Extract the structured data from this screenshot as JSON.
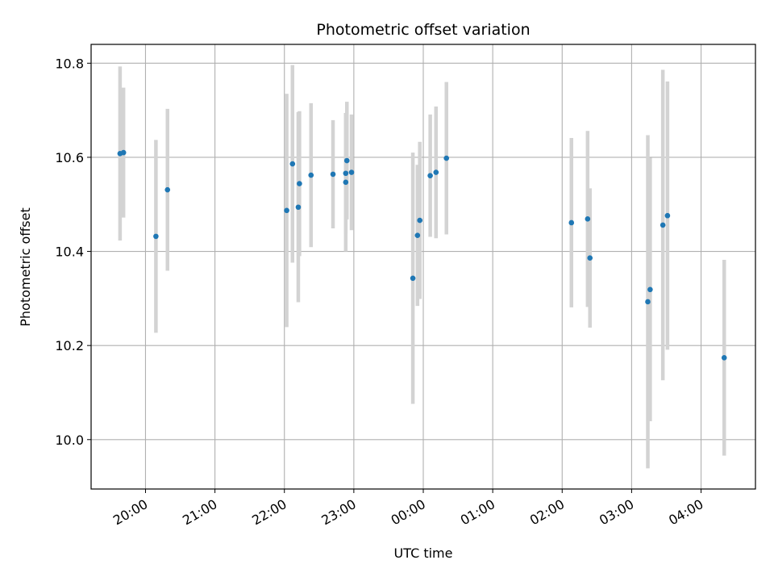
{
  "chart_data": {
    "type": "scatter",
    "title": "Photometric offset variation",
    "xlabel": "UTC time",
    "ylabel": "Photometric offset",
    "grid": true,
    "error_bar_color": "#d3d3d3",
    "point_color": "#1f77b4",
    "xlim": [
      "19:13",
      "04:47"
    ],
    "ylim": [
      9.895,
      10.84
    ],
    "x_ticks": [
      "20:00",
      "21:00",
      "22:00",
      "23:00",
      "00:00",
      "01:00",
      "02:00",
      "03:00",
      "04:00"
    ],
    "y_ticks": [
      "10.0",
      "10.2",
      "10.4",
      "10.6",
      "10.8"
    ],
    "points": [
      {
        "x": "19:38",
        "y": 10.608,
        "yerr": 0.185
      },
      {
        "x": "19:41",
        "y": 10.61,
        "yerr": 0.138
      },
      {
        "x": "20:09",
        "y": 10.432,
        "yerr": 0.205
      },
      {
        "x": "20:19",
        "y": 10.531,
        "yerr": 0.172
      },
      {
        "x": "22:02",
        "y": 10.487,
        "yerr": 0.248
      },
      {
        "x": "22:07",
        "y": 10.586,
        "yerr": 0.21
      },
      {
        "x": "22:12",
        "y": 10.494,
        "yerr": 0.202
      },
      {
        "x": "22:13",
        "y": 10.544,
        "yerr": 0.154
      },
      {
        "x": "22:23",
        "y": 10.562,
        "yerr": 0.153
      },
      {
        "x": "22:42",
        "y": 10.564,
        "yerr": 0.115
      },
      {
        "x": "22:53",
        "y": 10.547,
        "yerr": 0.147
      },
      {
        "x": "22:53",
        "y": 10.566,
        "yerr": 0.128
      },
      {
        "x": "22:54",
        "y": 10.593,
        "yerr": 0.125
      },
      {
        "x": "22:58",
        "y": 10.568,
        "yerr": 0.123
      },
      {
        "x": "23:51",
        "y": 10.343,
        "yerr": 0.267
      },
      {
        "x": "23:55",
        "y": 10.434,
        "yerr": 0.15
      },
      {
        "x": "23:57",
        "y": 10.466,
        "yerr": 0.167
      },
      {
        "x": "00:06",
        "y": 10.561,
        "yerr": 0.13
      },
      {
        "x": "00:11",
        "y": 10.568,
        "yerr": 0.14
      },
      {
        "x": "00:20",
        "y": 10.598,
        "yerr": 0.162
      },
      {
        "x": "02:08",
        "y": 10.461,
        "yerr": 0.18
      },
      {
        "x": "02:22",
        "y": 10.469,
        "yerr": 0.187
      },
      {
        "x": "02:24",
        "y": 10.386,
        "yerr": 0.148
      },
      {
        "x": "03:14",
        "y": 10.293,
        "yerr": 0.354
      },
      {
        "x": "03:16",
        "y": 10.319,
        "yerr": 0.28
      },
      {
        "x": "03:27",
        "y": 10.456,
        "yerr": 0.33
      },
      {
        "x": "03:31",
        "y": 10.476,
        "yerr": 0.285
      },
      {
        "x": "04:20",
        "y": 10.174,
        "yerr": 0.208
      }
    ]
  }
}
